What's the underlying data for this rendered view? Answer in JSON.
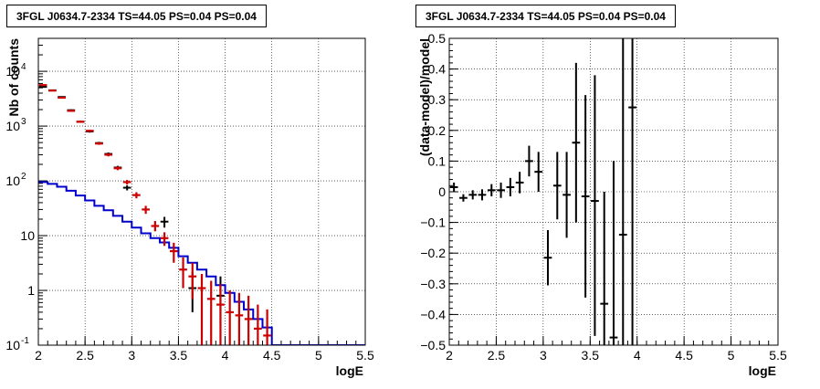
{
  "chart_data": [
    {
      "type": "histogram",
      "title": "3FGL J0634.7-2334 TS=44.05 PS=0.04 PS=0.04",
      "xlabel": "logE",
      "ylabel": "Nb of counts",
      "xlim": [
        2,
        5.5
      ],
      "ylim": [
        0.1,
        40000
      ],
      "yscale": "log",
      "grid": true,
      "x_ticks": [
        2,
        2.5,
        3,
        3.5,
        4,
        4.5,
        5,
        5.5
      ],
      "y_ticks": [
        0.1,
        1,
        10,
        100,
        1000,
        10000
      ],
      "y_tick_labels": [
        "10^-1",
        "1",
        "10",
        "10^2",
        "10^3",
        "10^4"
      ],
      "bin_edges": [
        2.0,
        2.1,
        2.2,
        2.3,
        2.4,
        2.5,
        2.6,
        2.7,
        2.8,
        2.9,
        3.0,
        3.1,
        3.2,
        3.3,
        3.4,
        3.5,
        3.6,
        3.7,
        3.8,
        3.9,
        4.0,
        4.1,
        4.2,
        4.3,
        4.4,
        4.5,
        4.6,
        4.7,
        4.8,
        4.9,
        5.0,
        5.1,
        5.2,
        5.3,
        5.4,
        5.5
      ],
      "series": [
        {
          "color": "#0000cc",
          "style": "step",
          "values": [
            95,
            88,
            78,
            66,
            54,
            44,
            35,
            29,
            23,
            18,
            14,
            11,
            9,
            7.5,
            6,
            4.2,
            3.2,
            2.4,
            1.8,
            1.25,
            0.9,
            0.62,
            0.45,
            0.3,
            0.21,
            0.1,
            0.1,
            0.1,
            0.1,
            0.1,
            0.1,
            0.1,
            0.1,
            0.1,
            0.1
          ]
        },
        {
          "color": "#000000",
          "style": "errorbar",
          "points": [
            {
              "x": 2.05,
              "y": 5200,
              "lo": 5050,
              "hi": 5350
            },
            {
              "x": 2.15,
              "y": 4500,
              "lo": 4380,
              "hi": 4620
            },
            {
              "x": 2.25,
              "y": 3400,
              "lo": 3300,
              "hi": 3500
            },
            {
              "x": 2.35,
              "y": 1950,
              "lo": 1880,
              "hi": 2020
            },
            {
              "x": 2.45,
              "y": 1200,
              "lo": 1150,
              "hi": 1250
            },
            {
              "x": 2.55,
              "y": 800,
              "lo": 760,
              "hi": 840
            },
            {
              "x": 2.65,
              "y": 490,
              "lo": 465,
              "hi": 515
            },
            {
              "x": 2.75,
              "y": 310,
              "lo": 290,
              "hi": 330
            },
            {
              "x": 2.85,
              "y": 175,
              "lo": 162,
              "hi": 188
            },
            {
              "x": 2.95,
              "y": 75,
              "lo": 67,
              "hi": 83
            },
            {
              "x": 3.35,
              "y": 18,
              "lo": 14,
              "hi": 22
            },
            {
              "x": 3.65,
              "y": 1.1,
              "lo": 0.4,
              "hi": 2.2
            },
            {
              "x": 3.95,
              "y": 0.8,
              "lo": 0.25,
              "hi": 1.8
            }
          ]
        },
        {
          "color": "#cc0000",
          "style": "errorbar",
          "points": [
            {
              "x": 2.05,
              "y": 5600,
              "lo": 5450,
              "hi": 5750
            },
            {
              "x": 2.15,
              "y": 4450,
              "lo": 4330,
              "hi": 4570
            },
            {
              "x": 2.25,
              "y": 3300,
              "lo": 3200,
              "hi": 3400
            },
            {
              "x": 2.35,
              "y": 1900,
              "lo": 1830,
              "hi": 1970
            },
            {
              "x": 2.45,
              "y": 1200,
              "lo": 1150,
              "hi": 1250
            },
            {
              "x": 2.55,
              "y": 820,
              "lo": 780,
              "hi": 860
            },
            {
              "x": 2.65,
              "y": 480,
              "lo": 455,
              "hi": 505
            },
            {
              "x": 2.75,
              "y": 300,
              "lo": 280,
              "hi": 320
            },
            {
              "x": 2.85,
              "y": 170,
              "lo": 157,
              "hi": 183
            },
            {
              "x": 2.95,
              "y": 95,
              "lo": 86,
              "hi": 104
            },
            {
              "x": 3.05,
              "y": 55,
              "lo": 48,
              "hi": 62
            },
            {
              "x": 3.15,
              "y": 30,
              "lo": 25,
              "hi": 35
            },
            {
              "x": 3.25,
              "y": 15,
              "lo": 12,
              "hi": 18.5
            },
            {
              "x": 3.35,
              "y": 9,
              "lo": 6.5,
              "hi": 11.5
            },
            {
              "x": 3.45,
              "y": 5.2,
              "lo": 3.2,
              "hi": 7.4
            },
            {
              "x": 3.55,
              "y": 2.4,
              "lo": 1.1,
              "hi": 4.0
            },
            {
              "x": 3.65,
              "y": 1.8,
              "lo": 0.7,
              "hi": 3.2
            },
            {
              "x": 3.75,
              "y": 1.1,
              "lo": 0.1,
              "hi": 2.0
            },
            {
              "x": 3.85,
              "y": 0.7,
              "lo": 0.1,
              "hi": 1.5
            },
            {
              "x": 3.95,
              "y": 0.55,
              "lo": 0.1,
              "hi": 1.3
            },
            {
              "x": 4.05,
              "y": 0.4,
              "lo": 0.1,
              "hi": 1.0
            },
            {
              "x": 4.15,
              "y": 0.35,
              "lo": 0.1,
              "hi": 0.9
            },
            {
              "x": 4.25,
              "y": 0.3,
              "lo": 0.1,
              "hi": 0.8
            },
            {
              "x": 4.35,
              "y": 0.2,
              "lo": 0.1,
              "hi": 0.55
            },
            {
              "x": 4.45,
              "y": 0.15,
              "lo": 0.1,
              "hi": 0.45
            }
          ]
        }
      ]
    },
    {
      "type": "scatter",
      "title": "3FGL J0634.7-2334 TS=44.05 PS=0.04 PS=0.04",
      "xlabel": "logE",
      "ylabel": "(data-model)/model",
      "xlim": [
        2,
        5.5
      ],
      "ylim": [
        -0.5,
        0.5
      ],
      "grid": true,
      "x_ticks": [
        2,
        2.5,
        3,
        3.5,
        4,
        4.5,
        5,
        5.5
      ],
      "y_ticks": [
        -0.5,
        -0.4,
        -0.3,
        -0.2,
        -0.1,
        0,
        0.1,
        0.2,
        0.3,
        0.4,
        0.5
      ],
      "series": [
        {
          "color": "#000000",
          "style": "errorbar",
          "points": [
            {
              "x": 2.05,
              "y": 0.015,
              "lo": 0.0,
              "hi": 0.03
            },
            {
              "x": 2.15,
              "y": -0.02,
              "lo": -0.032,
              "hi": -0.008
            },
            {
              "x": 2.25,
              "y": -0.01,
              "lo": -0.025,
              "hi": 0.005
            },
            {
              "x": 2.35,
              "y": -0.01,
              "lo": -0.028,
              "hi": 0.008
            },
            {
              "x": 2.45,
              "y": 0.005,
              "lo": -0.015,
              "hi": 0.025
            },
            {
              "x": 2.55,
              "y": 0.005,
              "lo": -0.02,
              "hi": 0.03
            },
            {
              "x": 2.65,
              "y": 0.015,
              "lo": -0.015,
              "hi": 0.045
            },
            {
              "x": 2.75,
              "y": 0.03,
              "lo": -0.005,
              "hi": 0.065
            },
            {
              "x": 2.85,
              "y": 0.1,
              "lo": 0.05,
              "hi": 0.15
            },
            {
              "x": 2.95,
              "y": 0.065,
              "lo": 0.0,
              "hi": 0.13
            },
            {
              "x": 3.05,
              "y": -0.215,
              "lo": -0.305,
              "hi": -0.125
            },
            {
              "x": 3.15,
              "y": 0.02,
              "lo": -0.09,
              "hi": 0.13
            },
            {
              "x": 3.25,
              "y": -0.01,
              "lo": -0.15,
              "hi": 0.13
            },
            {
              "x": 3.35,
              "y": 0.16,
              "lo": -0.1,
              "hi": 0.42
            },
            {
              "x": 3.45,
              "y": -0.015,
              "lo": -0.345,
              "hi": 0.315
            },
            {
              "x": 3.55,
              "y": -0.03,
              "lo": -0.47,
              "hi": 0.38
            },
            {
              "x": 3.65,
              "y": -0.365,
              "lo": -0.5,
              "hi": 0.0
            },
            {
              "x": 3.75,
              "y": -0.475,
              "lo": -0.5,
              "hi": 0.1
            },
            {
              "x": 3.85,
              "y": -0.14,
              "lo": -0.5,
              "hi": 0.5
            },
            {
              "x": 3.95,
              "y": 0.275,
              "lo": -0.5,
              "hi": 0.5
            }
          ]
        }
      ]
    }
  ]
}
